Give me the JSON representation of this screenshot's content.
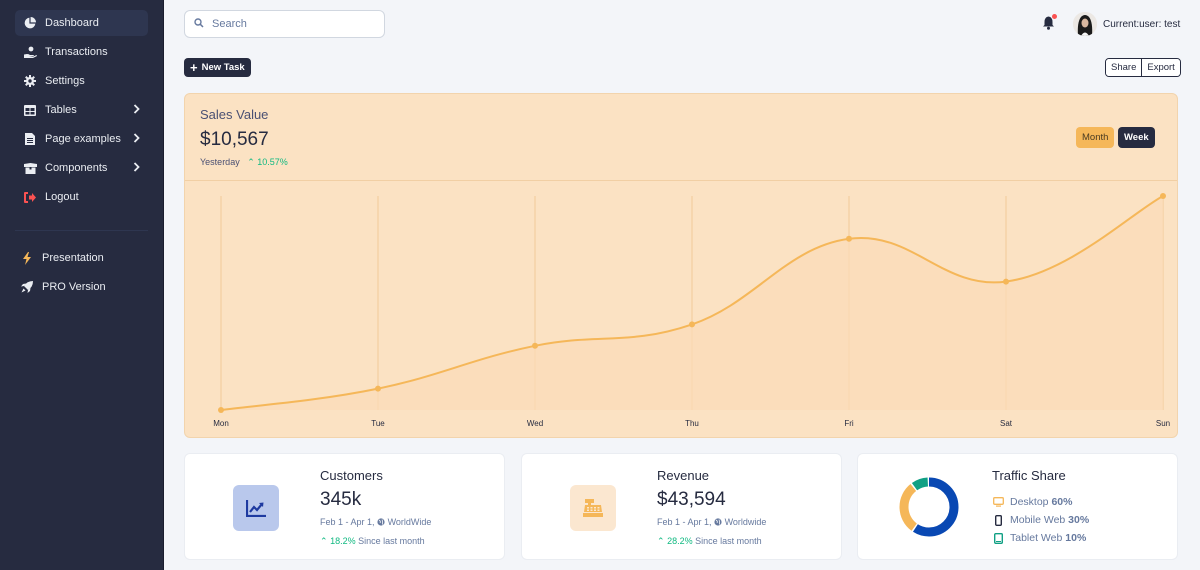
{
  "sidebar": {
    "items": [
      {
        "label": "Dashboard",
        "icon": "chart-pie-icon",
        "active": true,
        "has_submenu": false
      },
      {
        "label": "Transactions",
        "icon": "hand-holding-usd-icon",
        "active": false,
        "has_submenu": false
      },
      {
        "label": "Settings",
        "icon": "gear-icon",
        "active": false,
        "has_submenu": false
      },
      {
        "label": "Tables",
        "icon": "table-icon",
        "active": false,
        "has_submenu": true
      },
      {
        "label": "Page examples",
        "icon": "file-icon",
        "active": false,
        "has_submenu": true
      },
      {
        "label": "Components",
        "icon": "box-open-icon",
        "active": false,
        "has_submenu": true
      },
      {
        "label": "Logout",
        "icon": "sign-out-icon",
        "active": false,
        "has_submenu": false
      }
    ],
    "secondary": [
      {
        "label": "Presentation",
        "icon": "bolt-icon"
      },
      {
        "label": "PRO Version",
        "icon": "rocket-icon"
      }
    ]
  },
  "topbar": {
    "search_placeholder": "Search",
    "search_value": "",
    "notifications_unread": true,
    "user_label": "Current:user: test"
  },
  "toolbar": {
    "new_task_label": "New Task",
    "share_label": "Share",
    "export_label": "Export"
  },
  "sales": {
    "title": "Sales Value",
    "value": "$10,567",
    "period_label": "Yesterday",
    "change": "10.57%",
    "month_label": "Month",
    "week_label": "Week",
    "active_range": "Week"
  },
  "chart_data": {
    "type": "line",
    "title": "Sales Value",
    "categories": [
      "Mon",
      "Tue",
      "Wed",
      "Thu",
      "Fri",
      "Sat",
      "Sun"
    ],
    "values": [
      0,
      10,
      30,
      40,
      80,
      60,
      100
    ],
    "xlabel": "",
    "ylabel": "",
    "ylim": [
      0,
      100
    ],
    "y_axis_visible": false,
    "grid": "vertical",
    "smooth": true,
    "area_fill": true,
    "colors": {
      "line": "#f5b759",
      "fill": "#fbdcb8",
      "grid": "#f0c99a"
    }
  },
  "stats": {
    "customers": {
      "title": "Customers",
      "value": "345k",
      "range": "Feb 1 - Apr 1,",
      "region": "WorldWide",
      "change": "18.2%",
      "change_label": "Since last month",
      "icon": "chart-line-icon",
      "icon_bg": "#b9c8ec",
      "icon_color": "#1e3aa0"
    },
    "revenue": {
      "title": "Revenue",
      "value": "$43,594",
      "range": "Feb 1 - Apr 1,",
      "region": "Worldwide",
      "change": "28.2%",
      "change_label": "Since last month",
      "icon": "cash-register-icon",
      "icon_bg": "#fbe7d0",
      "icon_color": "#f5b759"
    },
    "traffic": {
      "title": "Traffic Share",
      "items": [
        {
          "label": "Desktop",
          "value": "60%",
          "color": "#f5b759",
          "icon": "desktop-icon"
        },
        {
          "label": "Mobile Web",
          "value": "30%",
          "color": "#262b40",
          "icon": "mobile-icon"
        },
        {
          "label": "Tablet Web",
          "value": "10%",
          "color": "#10a084",
          "icon": "tablet-icon"
        }
      ],
      "donut_colors": {
        "main": "#0948b3",
        "secondary": "#f5b759",
        "tertiary": "#10a084"
      }
    }
  }
}
